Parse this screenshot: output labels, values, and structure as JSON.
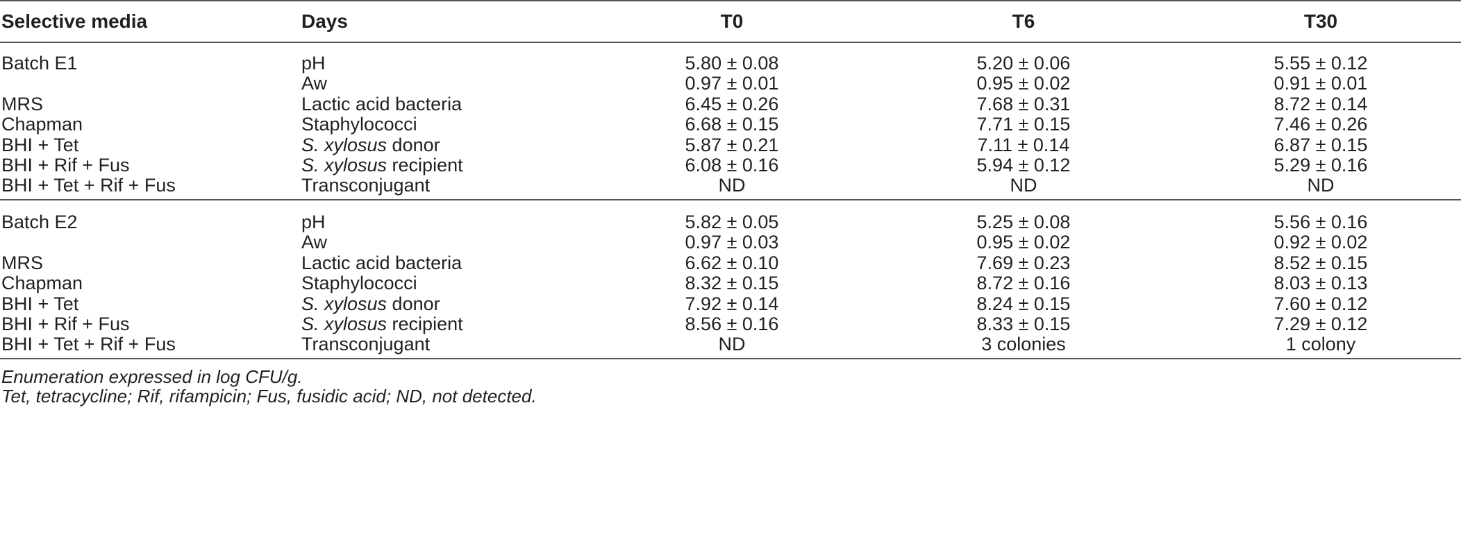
{
  "table": {
    "headers": [
      "Selective media",
      "Days",
      "T0",
      "T6",
      "T30"
    ],
    "batches": [
      {
        "rows": [
          {
            "media": "Batch E1",
            "param_italic": "",
            "param": "pH",
            "t0": "5.80 ± 0.08",
            "t6": "5.20 ± 0.06",
            "t30": "5.55 ± 0.12"
          },
          {
            "media": "",
            "param_italic": "",
            "param": "Aw",
            "t0": "0.97 ± 0.01",
            "t6": "0.95 ± 0.02",
            "t30": "0.91 ± 0.01"
          },
          {
            "media": "MRS",
            "param_italic": "",
            "param": "Lactic acid bacteria",
            "t0": "6.45 ± 0.26",
            "t6": "7.68 ± 0.31",
            "t30": "8.72 ± 0.14"
          },
          {
            "media": "Chapman",
            "param_italic": "",
            "param": "Staphylococci",
            "t0": "6.68 ± 0.15",
            "t6": "7.71 ± 0.15",
            "t30": "7.46 ± 0.26"
          },
          {
            "media": "BHI + Tet",
            "param_italic": "S. xylosus",
            "param": " donor",
            "t0": "5.87 ± 0.21",
            "t6": "7.11 ± 0.14",
            "t30": "6.87 ± 0.15"
          },
          {
            "media": "BHI + Rif + Fus",
            "param_italic": "S. xylosus",
            "param": " recipient",
            "t0": "6.08 ± 0.16",
            "t6": "5.94 ± 0.12",
            "t30": "5.29 ± 0.16"
          },
          {
            "media": "BHI + Tet + Rif + Fus",
            "param_italic": "",
            "param": "Transconjugant",
            "t0": "ND",
            "t6": "ND",
            "t30": "ND"
          }
        ]
      },
      {
        "rows": [
          {
            "media": "Batch E2",
            "param_italic": "",
            "param": "pH",
            "t0": "5.82 ± 0.05",
            "t6": "5.25 ± 0.08",
            "t30": "5.56 ± 0.16"
          },
          {
            "media": "",
            "param_italic": "",
            "param": "Aw",
            "t0": "0.97 ± 0.03",
            "t6": "0.95 ± 0.02",
            "t30": "0.92 ± 0.02"
          },
          {
            "media": "MRS",
            "param_italic": "",
            "param": "Lactic acid bacteria",
            "t0": "6.62 ± 0.10",
            "t6": "7.69 ± 0.23",
            "t30": "8.52 ± 0.15"
          },
          {
            "media": "Chapman",
            "param_italic": "",
            "param": "Staphylococci",
            "t0": "8.32 ± 0.15",
            "t6": "8.72 ± 0.16",
            "t30": "8.03 ± 0.13"
          },
          {
            "media": "BHI + Tet",
            "param_italic": "S. xylosus",
            "param": " donor",
            "t0": "7.92 ± 0.14",
            "t6": "8.24 ± 0.15",
            "t30": "7.60 ± 0.12"
          },
          {
            "media": "BHI + Rif + Fus",
            "param_italic": "S. xylosus",
            "param": " recipient",
            "t0": "8.56 ± 0.16",
            "t6": "8.33 ± 0.15",
            "t30": "7.29 ± 0.12"
          },
          {
            "media": "BHI + Tet + Rif + Fus",
            "param_italic": "",
            "param": "Transconjugant",
            "t0": "ND",
            "t6": "3 colonies",
            "t30": "1 colony"
          }
        ]
      }
    ]
  },
  "footnotes": [
    "Enumeration expressed in log CFU/g.",
    "Tet, tetracycline; Rif, rifampicin; Fus, fusidic acid; ND, not detected."
  ]
}
